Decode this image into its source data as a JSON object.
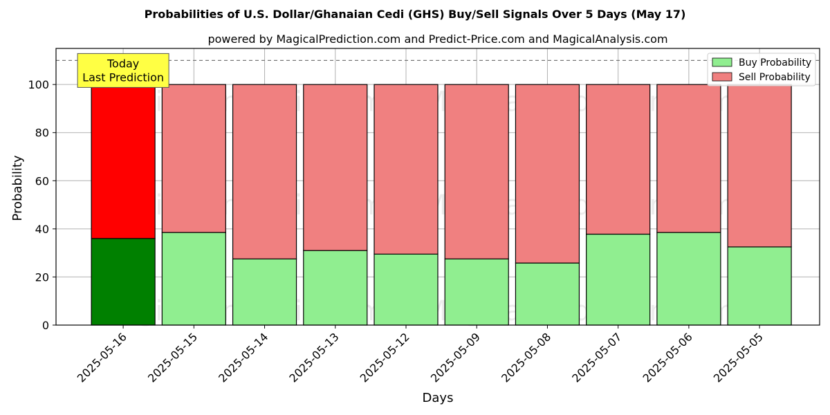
{
  "chart_data": {
    "type": "bar",
    "title": "Probabilities of U.S. Dollar/Ghanaian Cedi (GHS) Buy/Sell Signals Over 5 Days (May 17)",
    "subtitle": "powered by MagicalPrediction.com and Predict-Price.com and MagicalAnalysis.com",
    "xlabel": "Days",
    "ylabel": "Probability",
    "ylim": [
      0,
      115
    ],
    "yticks": [
      0,
      20,
      40,
      60,
      80,
      100
    ],
    "categories": [
      "2025-05-16",
      "2025-05-15",
      "2025-05-14",
      "2025-05-13",
      "2025-05-12",
      "2025-05-09",
      "2025-05-08",
      "2025-05-07",
      "2025-05-06",
      "2025-05-05"
    ],
    "stacked": true,
    "series": [
      {
        "name": "Buy Probability",
        "values": [
          36,
          38.5,
          27.5,
          31,
          29.5,
          27.5,
          25.8,
          37.8,
          38.5,
          32.5
        ]
      },
      {
        "name": "Sell Probability",
        "values": [
          64,
          61.5,
          72.5,
          69,
          70.5,
          72.5,
          74.2,
          62.2,
          61.5,
          67.5
        ]
      }
    ],
    "colors": {
      "buy": "#90EE90",
      "sell": "#F08080",
      "buy_highlight": "#008000",
      "sell_highlight": "#FF0000",
      "annotation_bg": "#FFFF44"
    },
    "highlight_index": 0,
    "reference_line": 110,
    "annotation": {
      "lines": [
        "Today",
        "Last Prediction"
      ]
    },
    "legend_position": "top-right",
    "grid": true,
    "watermarks": [
      "MagicalAnalysis.com",
      "MagicalPrediction.com"
    ]
  }
}
